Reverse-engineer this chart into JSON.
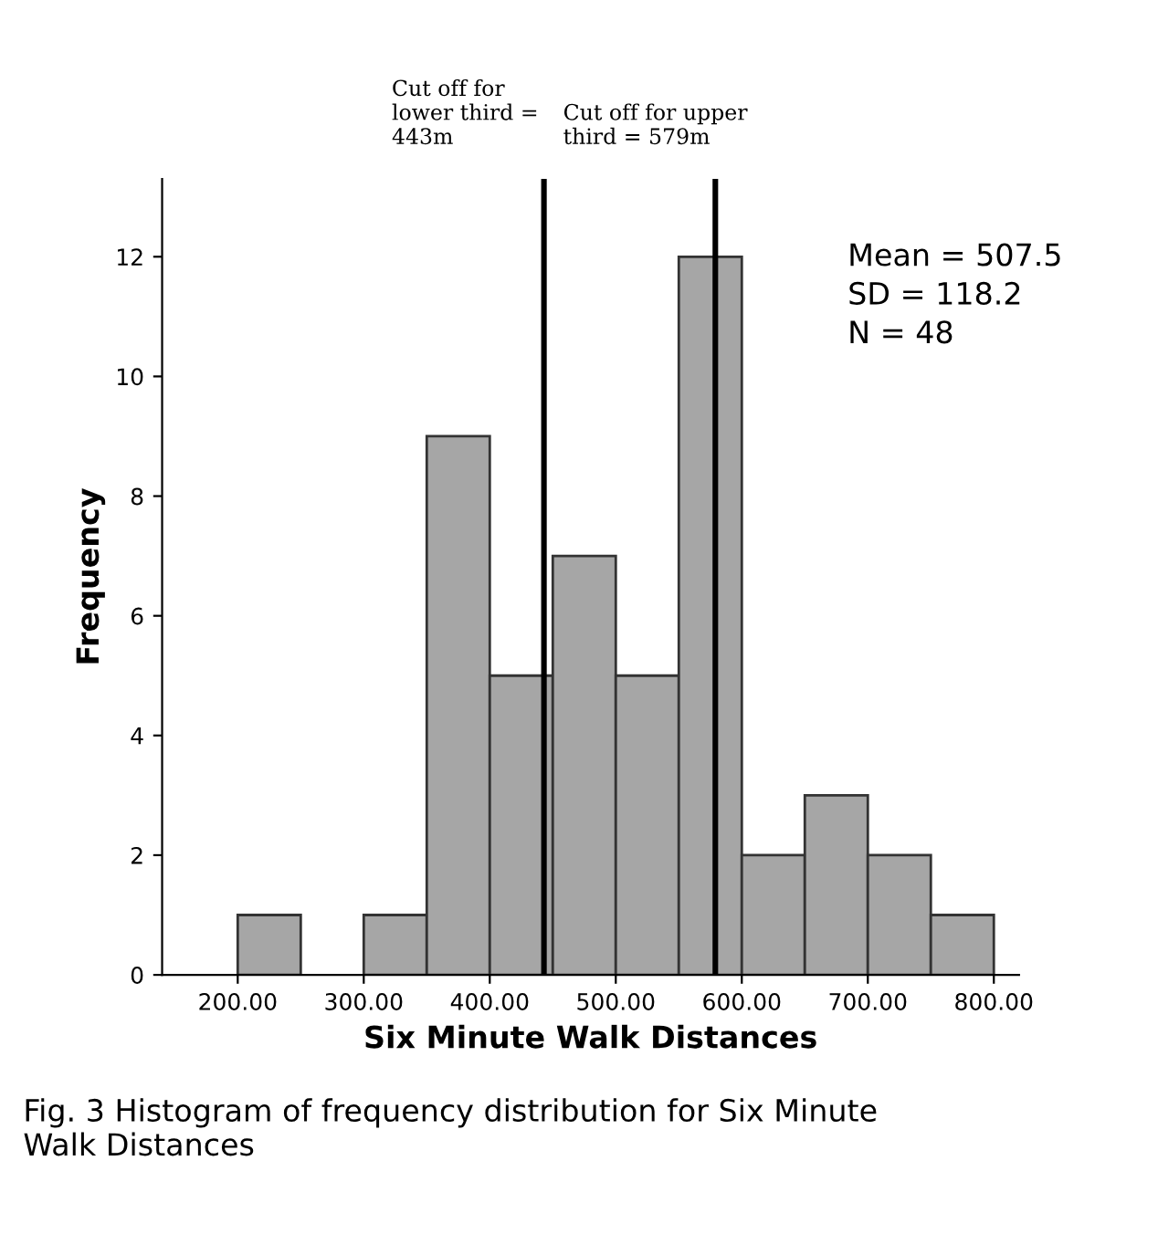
{
  "chart_data": {
    "type": "histogram",
    "xlabel": "Six Minute Walk Distances",
    "ylabel": "Frequency",
    "bins": [
      200,
      250,
      300,
      350,
      400,
      450,
      500,
      550,
      600,
      650,
      700,
      750,
      800
    ],
    "values": [
      1,
      0,
      1,
      9,
      5,
      7,
      5,
      12,
      2,
      3,
      2,
      1
    ],
    "color": "#a6a6a6",
    "xlim": [
      140,
      820
    ],
    "ylim": [
      0,
      13.3
    ],
    "xticks": [
      {
        "value": 200,
        "label": "200.00"
      },
      {
        "value": 300,
        "label": "300.00"
      },
      {
        "value": 400,
        "label": "400.00"
      },
      {
        "value": 500,
        "label": "500.00"
      },
      {
        "value": 600,
        "label": "600.00"
      },
      {
        "value": 700,
        "label": "700.00"
      },
      {
        "value": 800,
        "label": "800.00"
      }
    ],
    "yticks": [
      0,
      2,
      4,
      6,
      8,
      10,
      12
    ],
    "grid": false,
    "ref_lines": [
      {
        "axis": "x",
        "value": 443,
        "label": "Cut off for\nlower third =\n443m",
        "color": "#000000"
      },
      {
        "axis": "x",
        "value": 579,
        "label": "Cut off for upper\nthird = 579m",
        "color": "#000000"
      }
    ],
    "annotations": [
      "Mean = 507.5\nSD = 118.2\nN = 48",
      "Fig. 3 Histogram of frequency distribution for Six Minute\nWalk Distances"
    ]
  }
}
